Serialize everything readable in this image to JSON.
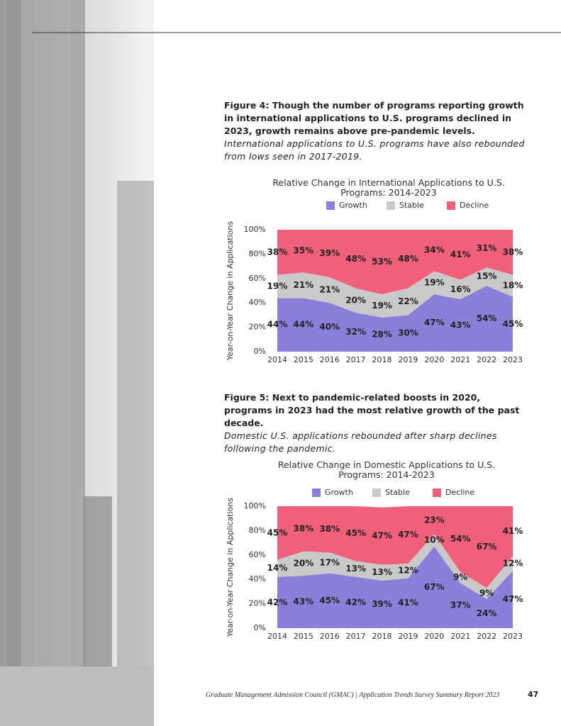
{
  "figures": [
    {
      "heading": "Figure 4: Though the number of programs reporting growth in international applications to U.S. programs declined in 2023, growth remains above pre-pandemic levels.",
      "subheading": "International applications to U.S. programs have also rebounded from lows seen in 2017-2019."
    },
    {
      "heading": "Figure 5: Next to pandemic-related boosts in 2020, programs in 2023 had the most relative growth of the past decade.",
      "subheading": "Domestic U.S. applications rebounded after sharp declines following the pandemic."
    }
  ],
  "footer": "Graduate Management Admission Council (GMAC) | Application Trends Survey Summary Report 2023",
  "page_number": 47,
  "chart_data": [
    {
      "type": "area",
      "stacked": true,
      "title": "Relative Change in International Applications to U.S. Programs: 2014-2023",
      "y_label": "Year-on-Year Change in Applications",
      "categories": [
        "2014",
        "2015",
        "2016",
        "2017",
        "2018",
        "2019",
        "2020",
        "2021",
        "2022",
        "2023"
      ],
      "ylim": [
        0,
        100
      ],
      "yticks": [
        {
          "value": 0,
          "label": "0%"
        },
        {
          "value": 20,
          "label": "20%"
        },
        {
          "value": 40,
          "label": "40%"
        },
        {
          "value": 60,
          "label": "60%"
        },
        {
          "value": 80,
          "label": "80%"
        },
        {
          "value": 100,
          "label": "100%"
        }
      ],
      "legend": "top",
      "series": [
        {
          "name": "Growth",
          "color": "#8b80d9",
          "values": [
            44,
            44,
            40,
            32,
            28,
            30,
            47,
            43,
            54,
            45
          ],
          "value_labels": [
            "44%",
            "44%",
            "40%",
            "32%",
            "28%",
            "30%",
            "47%",
            "43%",
            "54%",
            "45%"
          ]
        },
        {
          "name": "Stable",
          "color": "#c9c9c9",
          "values": [
            19,
            21,
            21,
            20,
            19,
            22,
            19,
            16,
            15,
            18
          ],
          "value_labels": [
            "19%",
            "21%",
            "21%",
            "20%",
            "19%",
            "22%",
            "19%",
            "16%",
            "15%",
            "18%"
          ]
        },
        {
          "name": "Decline",
          "color": "#f0607b",
          "values": [
            38,
            35,
            39,
            48,
            53,
            48,
            34,
            41,
            31,
            38
          ],
          "value_labels": [
            "38%",
            "35%",
            "39%",
            "48%",
            "53%",
            "48%",
            "34%",
            "41%",
            "31%",
            "38%"
          ]
        }
      ]
    },
    {
      "type": "area",
      "stacked": true,
      "title": "Relative Change in Domestic Applications to U.S. Programs: 2014-2023",
      "y_label": "Year-on-Year Change in Applications",
      "categories": [
        "2014",
        "2015",
        "2016",
        "2017",
        "2018",
        "2019",
        "2020",
        "2021",
        "2022",
        "2023"
      ],
      "ylim": [
        0,
        100
      ],
      "yticks": [
        {
          "value": 0,
          "label": "0%"
        },
        {
          "value": 20,
          "label": "20%"
        },
        {
          "value": 40,
          "label": "40%"
        },
        {
          "value": 60,
          "label": "60%"
        },
        {
          "value": 80,
          "label": "80%"
        },
        {
          "value": 100,
          "label": "100%"
        }
      ],
      "legend": "top",
      "series": [
        {
          "name": "Growth",
          "color": "#8b80d9",
          "values": [
            42,
            43,
            45,
            42,
            39,
            41,
            67,
            37,
            24,
            47
          ],
          "value_labels": [
            "42%",
            "43%",
            "45%",
            "42%",
            "39%",
            "41%",
            "67%",
            "37%",
            "24%",
            "47%"
          ]
        },
        {
          "name": "Stable",
          "color": "#c9c9c9",
          "values": [
            14,
            20,
            17,
            13,
            13,
            12,
            10,
            9,
            9,
            12
          ],
          "value_labels": [
            "14%",
            "20%",
            "17%",
            "13%",
            "13%",
            "12%",
            "10%",
            "9%",
            "9%",
            "12%"
          ]
        },
        {
          "name": "Decline",
          "color": "#f0607b",
          "values": [
            45,
            38,
            38,
            45,
            47,
            47,
            23,
            54,
            67,
            41
          ],
          "value_labels": [
            "45%",
            "38%",
            "38%",
            "45%",
            "47%",
            "47%",
            "23%",
            "54%",
            "67%",
            "41%"
          ]
        }
      ]
    }
  ]
}
